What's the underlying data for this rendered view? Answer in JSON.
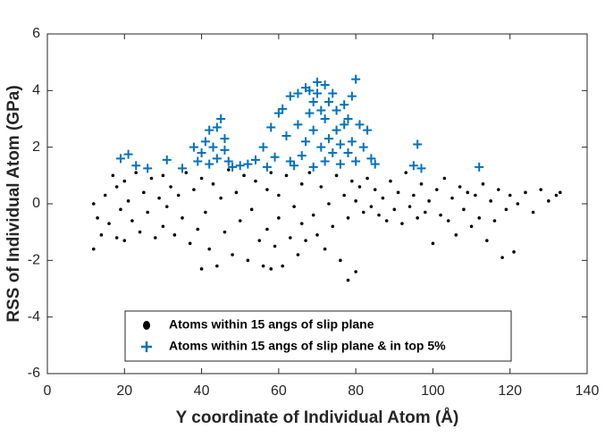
{
  "chart_data": {
    "type": "scatter",
    "x_label": "Y coordinate of Individual Atom (Å)",
    "y_label": "RSS of Individual Atom (GPa)",
    "xlim": [
      0,
      140
    ],
    "xticks": [
      0,
      20,
      40,
      60,
      80,
      100,
      120,
      140
    ],
    "ylim": [
      -6,
      6
    ],
    "yticks": [
      -6,
      -4,
      -2,
      0,
      2,
      4,
      6
    ],
    "grid": false,
    "legend": "lower center",
    "series": [
      {
        "name": "Atoms within 15 angs of slip plane",
        "color": "#000000",
        "marker": "dot",
        "x": [
          12,
          12,
          13,
          14,
          15,
          16,
          17,
          18,
          18,
          19,
          20,
          20,
          21,
          22,
          23,
          24,
          25,
          26,
          27,
          28,
          29,
          30,
          30,
          31,
          32,
          33,
          34,
          35,
          36,
          37,
          38,
          39,
          40,
          40,
          41,
          42,
          43,
          44,
          45,
          46,
          47,
          48,
          49,
          50,
          51,
          52,
          53,
          54,
          55,
          56,
          57,
          57,
          58,
          58,
          59,
          60,
          60,
          61,
          62,
          63,
          64,
          65,
          66,
          66,
          67,
          68,
          69,
          70,
          71,
          72,
          73,
          74,
          75,
          76,
          77,
          78,
          78,
          79,
          80,
          80,
          81,
          82,
          83,
          84,
          85,
          86,
          87,
          88,
          89,
          90,
          91,
          92,
          93,
          94,
          95,
          96,
          97,
          98,
          99,
          100,
          101,
          102,
          103,
          104,
          105,
          106,
          107,
          108,
          109,
          110,
          111,
          112,
          113,
          114,
          115,
          116,
          117,
          118,
          119,
          120,
          121,
          122,
          124,
          126,
          128,
          130,
          132,
          133
        ],
        "y": [
          0.0,
          -1.6,
          -0.5,
          -1.1,
          0.3,
          -0.7,
          1.0,
          -1.2,
          0.6,
          -0.2,
          0.8,
          -1.3,
          0.1,
          -0.6,
          1.1,
          -1.0,
          0.4,
          -0.3,
          0.9,
          -1.2,
          0.2,
          -0.8,
          1.0,
          -0.1,
          0.6,
          -1.1,
          0.3,
          -0.5,
          1.1,
          -1.4,
          0.5,
          -0.9,
          -2.3,
          0.9,
          -0.3,
          -1.6,
          0.7,
          -2.2,
          0.2,
          -1.0,
          1.2,
          -1.8,
          0.4,
          -0.6,
          1.0,
          -2.0,
          -0.2,
          0.8,
          -1.3,
          -2.2,
          0.5,
          -0.9,
          1.1,
          -2.3,
          -1.5,
          0.3,
          -0.5,
          -2.2,
          1.0,
          -1.2,
          -0.1,
          -1.8,
          0.7,
          -0.7,
          -1.3,
          1.1,
          -0.4,
          -1.1,
          0.6,
          -1.6,
          0.0,
          -0.8,
          1.0,
          -2.0,
          0.3,
          -2.7,
          -0.5,
          0.8,
          -2.4,
          0.1,
          0.6,
          -0.3,
          0.9,
          -0.1,
          0.5,
          -0.4,
          0.2,
          -0.6,
          0.8,
          -0.2,
          0.4,
          -0.7,
          1.1,
          -0.1,
          0.3,
          -0.5,
          0.7,
          -0.3,
          0.1,
          -1.4,
          0.5,
          -0.4,
          0.9,
          -0.6,
          0.2,
          -1.1,
          0.6,
          -0.2,
          0.4,
          -0.8,
          0.3,
          -0.5,
          0.7,
          -1.3,
          0.1,
          -0.6,
          0.5,
          -1.9,
          -0.2,
          0.3,
          -1.7,
          0.0,
          0.4,
          -0.3,
          0.5,
          0.1,
          0.3,
          0.4
        ]
      },
      {
        "name": "Atoms within 15 angs of slip plane & in top 5%",
        "color": "#0072bd",
        "marker": "plus",
        "x": [
          19,
          21,
          23,
          26,
          31,
          35,
          38,
          39,
          40,
          41,
          42,
          42,
          43,
          44,
          44,
          45,
          46,
          46,
          47,
          48,
          50,
          52,
          54,
          56,
          57,
          58,
          59,
          60,
          61,
          62,
          63,
          63,
          64,
          65,
          65,
          66,
          67,
          67,
          68,
          68,
          69,
          69,
          69,
          70,
          70,
          71,
          71,
          72,
          72,
          72,
          73,
          73,
          74,
          74,
          75,
          75,
          76,
          76,
          77,
          77,
          78,
          78,
          79,
          79,
          80,
          80,
          81,
          82,
          83,
          84,
          85,
          95,
          96,
          97,
          112
        ],
        "y": [
          1.6,
          1.75,
          1.35,
          1.25,
          1.55,
          1.25,
          2.0,
          1.5,
          1.8,
          2.2,
          2.6,
          1.4,
          2.0,
          2.7,
          1.6,
          3.0,
          2.3,
          1.9,
          1.5,
          1.3,
          1.35,
          1.4,
          1.55,
          2.0,
          1.3,
          2.7,
          1.65,
          3.2,
          3.35,
          2.4,
          3.8,
          1.5,
          1.35,
          3.9,
          2.8,
          1.7,
          4.1,
          2.2,
          4.0,
          3.2,
          3.6,
          2.6,
          1.3,
          4.3,
          3.9,
          3.3,
          2.0,
          4.2,
          3.0,
          1.5,
          3.6,
          2.3,
          3.9,
          1.8,
          3.3,
          2.6,
          2.1,
          1.4,
          3.5,
          2.8,
          3.0,
          1.8,
          3.8,
          2.2,
          4.4,
          1.5,
          2.8,
          2.0,
          2.6,
          1.6,
          1.4,
          1.35,
          2.1,
          1.25,
          1.3
        ]
      }
    ]
  }
}
